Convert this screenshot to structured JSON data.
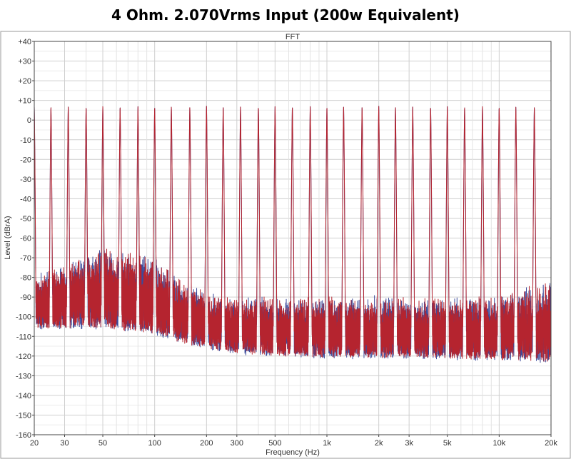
{
  "chart_data": {
    "type": "line",
    "title": "4 Ohm. 2.070Vrms Input (200w Equivalent)",
    "subtitle": "FFT",
    "xlabel": "Frequency (Hz)",
    "ylabel": "Level (dBrA)",
    "xscale": "log",
    "xlim": [
      20,
      20000
    ],
    "ylim": [
      -160,
      40
    ],
    "grid": true,
    "x_ticks": [
      {
        "value": 20,
        "label": "20"
      },
      {
        "value": 30,
        "label": "30"
      },
      {
        "value": 50,
        "label": "50"
      },
      {
        "value": 100,
        "label": "100"
      },
      {
        "value": 200,
        "label": "200"
      },
      {
        "value": 300,
        "label": "300"
      },
      {
        "value": 500,
        "label": "500"
      },
      {
        "value": 1000,
        "label": "1k"
      },
      {
        "value": 2000,
        "label": "2k"
      },
      {
        "value": 3000,
        "label": "3k"
      },
      {
        "value": 5000,
        "label": "5k"
      },
      {
        "value": 10000,
        "label": "10k"
      },
      {
        "value": 20000,
        "label": "20k"
      }
    ],
    "y_ticks": [
      {
        "value": 40,
        "label": "+40"
      },
      {
        "value": 30,
        "label": "+30"
      },
      {
        "value": 20,
        "label": "+20"
      },
      {
        "value": 10,
        "label": "+10"
      },
      {
        "value": 0,
        "label": "0"
      },
      {
        "value": -10,
        "label": "-10"
      },
      {
        "value": -20,
        "label": "-20"
      },
      {
        "value": -30,
        "label": "-30"
      },
      {
        "value": -40,
        "label": "-40"
      },
      {
        "value": -50,
        "label": "-50"
      },
      {
        "value": -60,
        "label": "-60"
      },
      {
        "value": -70,
        "label": "-70"
      },
      {
        "value": -80,
        "label": "-80"
      },
      {
        "value": -90,
        "label": "-90"
      },
      {
        "value": -100,
        "label": "-100"
      },
      {
        "value": -110,
        "label": "-110"
      },
      {
        "value": -120,
        "label": "-120"
      },
      {
        "value": -130,
        "label": "-130"
      },
      {
        "value": -140,
        "label": "-140"
      },
      {
        "value": -150,
        "label": "-150"
      },
      {
        "value": -160,
        "label": "-160"
      }
    ],
    "tone_peaks_hz": [
      20,
      25,
      31.5,
      40,
      50,
      63,
      80,
      100,
      125,
      160,
      200,
      250,
      315,
      400,
      500,
      630,
      800,
      1000,
      1250,
      1600,
      2000,
      2500,
      3150,
      4000,
      5000,
      6300,
      8000,
      10000,
      12500,
      16000
    ],
    "tone_peak_level_dbra": 7,
    "noise_floor_envelope": [
      {
        "x": 20,
        "top": -80,
        "bottom": -105
      },
      {
        "x": 50,
        "top": -64,
        "bottom": -105
      },
      {
        "x": 100,
        "top": -70,
        "bottom": -108
      },
      {
        "x": 150,
        "top": -83,
        "bottom": -113
      },
      {
        "x": 200,
        "top": -87,
        "bottom": -115
      },
      {
        "x": 300,
        "top": -90,
        "bottom": -118
      },
      {
        "x": 1000,
        "top": -90,
        "bottom": -120
      },
      {
        "x": 3000,
        "top": -90,
        "bottom": -120
      },
      {
        "x": 10000,
        "top": -90,
        "bottom": -121
      },
      {
        "x": 20000,
        "top": -81,
        "bottom": -122
      }
    ],
    "series": [
      {
        "color": "#3b4a9a"
      },
      {
        "color": "#b5242f"
      }
    ]
  }
}
